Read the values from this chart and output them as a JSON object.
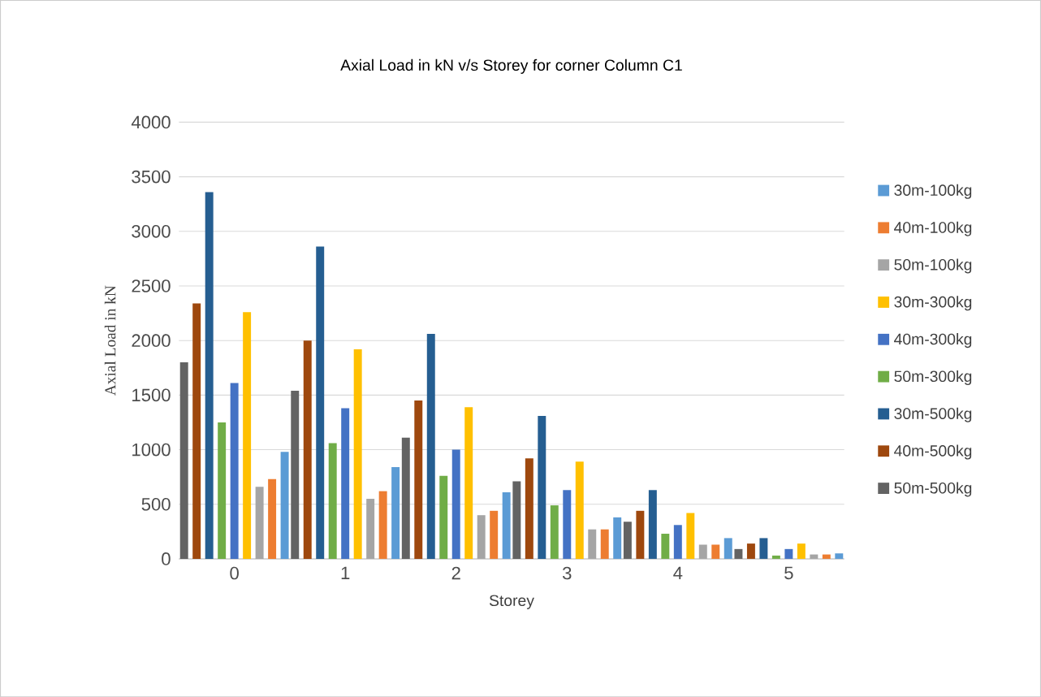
{
  "chart_data": {
    "type": "bar",
    "title": "Axial Load in kN v/s Storey for corner Column C1",
    "xlabel": "Storey",
    "ylabel": "Axial Load in kN",
    "categories": [
      "0",
      "1",
      "2",
      "3",
      "4",
      "5"
    ],
    "ylim": [
      0,
      4000
    ],
    "yticks": [
      0,
      500,
      1000,
      1500,
      2000,
      2500,
      3000,
      3500,
      4000
    ],
    "grid": "y",
    "legend": "right",
    "series": [
      {
        "name": "30m-100kg",
        "color": "#5b9bd5",
        "values": [
          980,
          840,
          610,
          380,
          190,
          50
        ]
      },
      {
        "name": "40m-100kg",
        "color": "#ed7d31",
        "values": [
          730,
          620,
          440,
          270,
          130,
          40
        ]
      },
      {
        "name": "50m-100kg",
        "color": "#a5a5a5",
        "values": [
          660,
          550,
          400,
          270,
          130,
          40
        ]
      },
      {
        "name": "30m-300kg",
        "color": "#ffc000",
        "values": [
          2260,
          1920,
          1390,
          890,
          420,
          140
        ]
      },
      {
        "name": "40m-300kg",
        "color": "#4472c4",
        "values": [
          1610,
          1380,
          1000,
          630,
          310,
          90
        ]
      },
      {
        "name": "50m-300kg",
        "color": "#70ad47",
        "values": [
          1250,
          1060,
          760,
          490,
          230,
          30
        ]
      },
      {
        "name": "30m-500kg",
        "color": "#255e91",
        "values": [
          3360,
          2860,
          2060,
          1310,
          630,
          190
        ]
      },
      {
        "name": "40m-500kg",
        "color": "#9e480e",
        "values": [
          2340,
          2000,
          1450,
          920,
          440,
          140
        ]
      },
      {
        "name": "50m-500kg",
        "color": "#636363",
        "values": [
          1800,
          1540,
          1110,
          710,
          340,
          90
        ]
      }
    ]
  }
}
